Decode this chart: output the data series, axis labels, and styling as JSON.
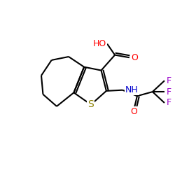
{
  "bg_color": "#ffffff",
  "atom_colors": {
    "S": "#8B8000",
    "N": "#0000cd",
    "O": "#ff0000",
    "F": "#9900cc",
    "C": "#000000"
  },
  "font_size": 9,
  "fig_size": [
    2.5,
    2.5
  ],
  "dpi": 100,
  "lw": 1.5
}
